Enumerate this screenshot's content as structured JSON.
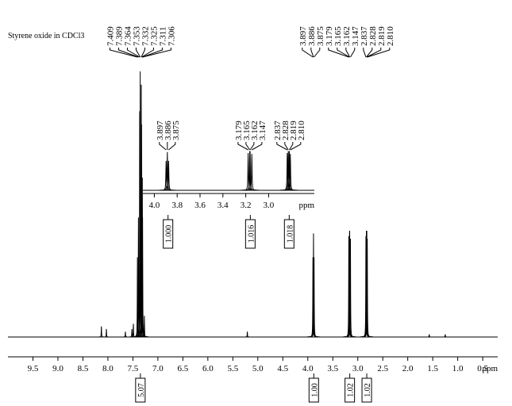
{
  "chart_data": {
    "type": "nmr",
    "title": "Styrene oxide in CDCl3",
    "xlabel": "ppm",
    "xlim": [
      10.0,
      0.2
    ],
    "ylim": [
      0,
      100
    ],
    "xticks": [
      9.5,
      {
        "value": 9,
        "label": "9.0"
      },
      8.5,
      {
        "value": 8,
        "label": "8.0"
      },
      7.5,
      {
        "value": 7,
        "label": "7.0"
      },
      6.5,
      {
        "value": 6,
        "label": "6.0"
      },
      5.5,
      {
        "value": 5,
        "label": "5.0"
      },
      4.5,
      {
        "value": 4,
        "label": "4.0"
      },
      3.5,
      {
        "value": 3,
        "label": "3.0"
      },
      2.5,
      {
        "value": 2,
        "label": "2.0"
      },
      1.5,
      {
        "value": 1,
        "label": "1.0"
      },
      0.5
    ],
    "peaks": {
      "x": [
        8.13,
        8.03,
        7.65,
        7.52,
        7.49,
        7.409,
        7.389,
        7.364,
        7.353,
        7.332,
        7.325,
        7.311,
        7.306,
        7.27,
        5.21,
        3.897,
        3.886,
        3.875,
        3.179,
        3.165,
        3.162,
        3.147,
        2.837,
        2.828,
        2.819,
        2.81,
        1.57,
        1.25
      ],
      "values": [
        4,
        3,
        2,
        3,
        5,
        30,
        45,
        85,
        100,
        95,
        80,
        60,
        45,
        8,
        2,
        30,
        39,
        30,
        38,
        40,
        40,
        37,
        38,
        40,
        40,
        37,
        1,
        1
      ]
    },
    "peak_labels": [
      [
        7.409,
        7.389,
        7.364,
        7.353,
        7.332,
        7.325,
        7.311,
        7.306
      ],
      [
        3.897,
        3.886,
        3.875,
        3.179,
        3.165,
        3.162,
        3.147,
        2.837,
        2.828,
        2.819,
        {
          "value": 2.81,
          "label": "2.810"
        }
      ]
    ],
    "integrals": [
      {
        "x": 7.35,
        "value": 5.07
      },
      {
        "x": 3.88,
        "value": 1,
        "label": "1.00"
      },
      {
        "x": 3.16,
        "value": 1.02
      },
      {
        "x": 2.82,
        "value": 1.02
      }
    ],
    "inset": {
      "xlim": [
        4.1,
        2.6
      ],
      "ylim": [
        0,
        42
      ],
      "xlabel": "ppm",
      "xticks": [
        {
          "value": 4,
          "label": "4.0"
        },
        3.8,
        3.6,
        3.4,
        3.2,
        {
          "value": 3,
          "label": "3.0"
        }
      ],
      "peak_labels": [
        [
          3.897,
          3.886,
          3.875
        ],
        [
          3.179,
          3.165,
          3.162,
          3.147
        ],
        [
          2.837,
          2.828,
          2.819,
          {
            "value": 2.81,
            "label": "2.810"
          }
        ]
      ],
      "integrals": [
        {
          "x": 3.88,
          "value": 1,
          "label": "1.000"
        },
        {
          "x": 3.16,
          "value": 1.016
        },
        {
          "x": 2.82,
          "value": 1.018
        }
      ]
    }
  }
}
